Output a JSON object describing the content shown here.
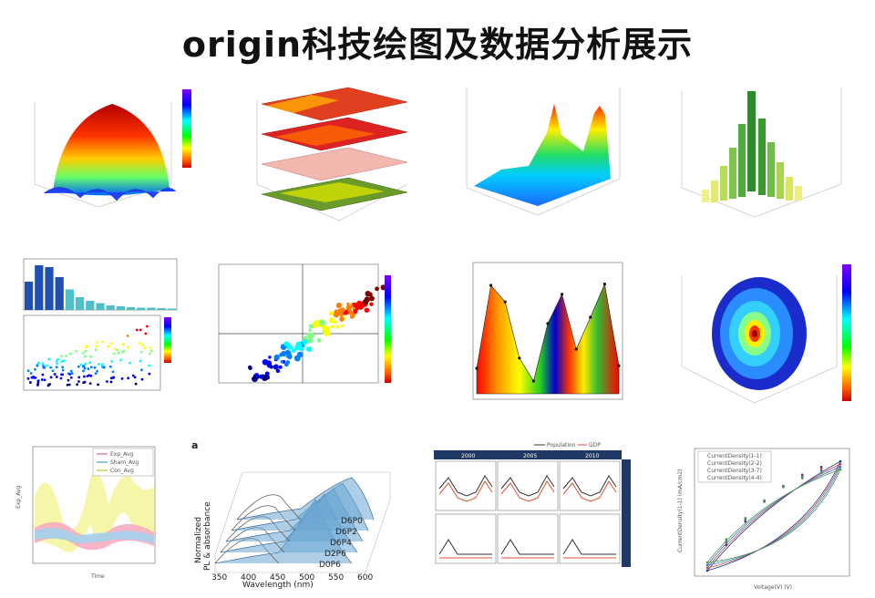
{
  "title": "origin科技绘图及数据分析展示",
  "colors": {
    "jet": [
      "#00007f",
      "#0000ff",
      "#007fff",
      "#00ffff",
      "#7fff7f",
      "#ffff00",
      "#ff7f00",
      "#ff0000",
      "#7f0000"
    ],
    "tablebar": "#1f3864"
  },
  "panels": {
    "p8_legend": [
      "Exp_Avg",
      "Sham_Avg",
      "Con_Avg"
    ],
    "p8_ylabel": "Exp_Avg",
    "p8_xlabel": "Time",
    "p9_letter": "a",
    "p9_labels": [
      "D6P0",
      "D6P2",
      "D6P4",
      "D2P6",
      "D0P6"
    ],
    "p9_xticks": [
      "350",
      "400",
      "450",
      "500",
      "550",
      "600"
    ],
    "p9_xlabel": "Wavelength (nm)",
    "p9_ylabel1": "Normalized",
    "p9_ylabel2": "PL & absorbance",
    "p10_years": [
      "2000",
      "2005",
      "2010"
    ],
    "p10_legend": [
      "Population",
      "GDP"
    ],
    "p11_legend": [
      "CurrentDensity(1-1)",
      "CurrentDensity(2-2)",
      "CurrentDensity(3-7)",
      "CurrentDensity(4-4)"
    ],
    "p11_xlabel": "Voltage(V) (V)",
    "p11_ylabel": "CurrentDensity(1-1) (mA/cm2)"
  },
  "chart_data": [
    {
      "type": "heatmap",
      "subtype": "3d-surface",
      "shape": "dome",
      "colorbar": true
    },
    {
      "type": "heatmap",
      "subtype": "3d-stacked-layers",
      "layers": 4
    },
    {
      "type": "area",
      "subtype": "3d-surface",
      "peaks": 2
    },
    {
      "type": "bar",
      "subtype": "3d-bars"
    },
    {
      "type": "bar",
      "subtype": "histogram-with-scatter",
      "values": [
        62,
        98,
        94,
        72,
        45,
        28,
        20,
        15,
        10,
        8,
        6,
        5,
        5,
        4,
        3
      ]
    },
    {
      "type": "scatter",
      "subtype": "quadrant-colormap"
    },
    {
      "type": "area",
      "subtype": "rainbow-fill",
      "points": [
        [
          0,
          0.2
        ],
        [
          1,
          0.85
        ],
        [
          2,
          0.72
        ],
        [
          3,
          0.28
        ],
        [
          4,
          0.1
        ],
        [
          5,
          0.55
        ],
        [
          6,
          0.78
        ],
        [
          7,
          0.35
        ],
        [
          8,
          0.6
        ],
        [
          9,
          0.86
        ],
        [
          10,
          0.22
        ]
      ]
    },
    {
      "type": "heatmap",
      "subtype": "3d-contour-blob",
      "colorbar": true
    },
    {
      "type": "line",
      "subtype": "confidence-bands",
      "series": [
        {
          "name": "Exp_Avg"
        },
        {
          "name": "Sham_Avg"
        },
        {
          "name": "Con_Avg"
        }
      ]
    },
    {
      "type": "area",
      "subtype": "waterfall-spectra",
      "series": [
        {
          "name": "D6P0"
        },
        {
          "name": "D6P2"
        },
        {
          "name": "D6P4"
        },
        {
          "name": "D2P6"
        },
        {
          "name": "D0P6"
        }
      ],
      "xlim": [
        350,
        600
      ]
    },
    {
      "type": "line",
      "subtype": "panel-grid",
      "categories": [
        "2000",
        "2005",
        "2010"
      ]
    },
    {
      "type": "line",
      "subtype": "hysteresis-loop",
      "series": [
        {
          "name": "CurrentDensity(1-1)"
        },
        {
          "name": "CurrentDensity(2-2)"
        },
        {
          "name": "CurrentDensity(3-7)"
        },
        {
          "name": "CurrentDensity(4-4)"
        }
      ]
    }
  ]
}
